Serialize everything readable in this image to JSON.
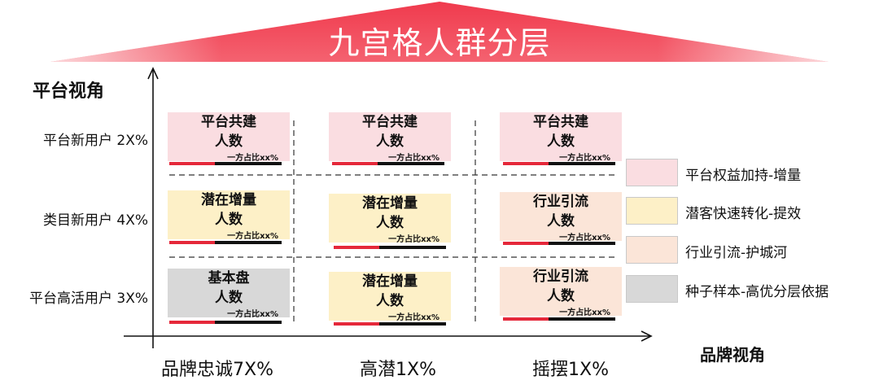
{
  "title": "九宫格人群分层",
  "y_axis_title": "平台视角",
  "x_axis_title": "品牌视角",
  "row_labels": [
    "平台新用户 2X%",
    "类目新用户 4X%",
    "平台高活用户 3X%"
  ],
  "col_labels": [
    "品牌忠诚7X%",
    "高潜1X%",
    "摇摆1X%"
  ],
  "cells": [
    {
      "line1": "平台共建",
      "line2": "人数",
      "ratio": "一方占比xx%",
      "color": "#fadde1"
    },
    {
      "line1": "平台共建",
      "line2": "人数",
      "ratio": "一方占比xx%",
      "color": "#fadde1"
    },
    {
      "line1": "平台共建",
      "line2": "人数",
      "ratio": "一方占比xx%",
      "color": "#fadde1"
    },
    {
      "line1": "潜在增量",
      "line2": "人数",
      "ratio": "一方占比xx%",
      "color": "#fdf0c7"
    },
    {
      "line1": "潜在增量",
      "line2": "人数",
      "ratio": "一方占比xx%",
      "color": "#fdf0c7"
    },
    {
      "line1": "行业引流",
      "line2": "人数",
      "ratio": "一方占比xx%",
      "color": "#fbe5d8"
    },
    {
      "line1": "基本盘",
      "line2": "人数",
      "ratio": "一方占比xx%",
      "color": "#d8d8d8"
    },
    {
      "line1": "潜在增量",
      "line2": "人数",
      "ratio": "一方占比xx%",
      "color": "#fdf0c7"
    },
    {
      "line1": "行业引流",
      "line2": "人数",
      "ratio": "一方占比xx%",
      "color": "#fbe5d8"
    }
  ],
  "legend": [
    {
      "label": "平台权益加持-增量",
      "color": "#fadde1"
    },
    {
      "label": "潜客快速转化-提效",
      "color": "#fdf0c7"
    },
    {
      "label": "行业引流-护城河",
      "color": "#fbe5d8"
    },
    {
      "label": "种子样本-高优分层依据",
      "color": "#d8d8d8"
    }
  ],
  "colors": {
    "accent_red": "#e5283a",
    "bar_black": "#111111",
    "roof_top": "#f14a5b",
    "roof_edge": "#fde0e3"
  }
}
